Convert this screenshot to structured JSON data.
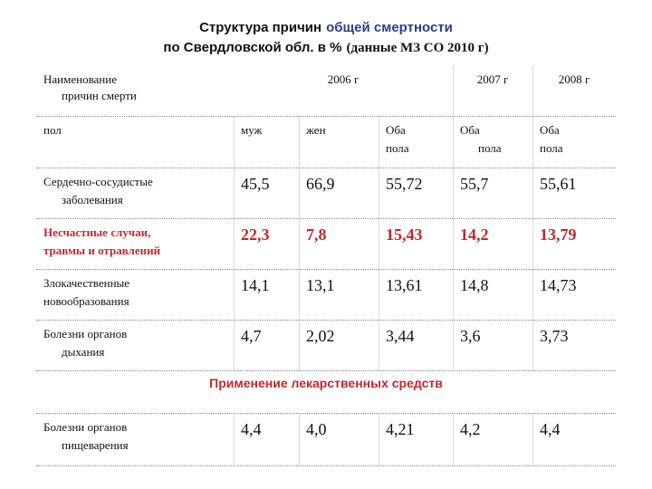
{
  "title": {
    "line1": [
      "Структура причин",
      "общей смертности"
    ],
    "line2": [
      "по Свердловской обл. в %",
      "(данные МЗ СО 2010 г)"
    ]
  },
  "table": {
    "header": {
      "name": [
        "Наименование",
        "причин смерти"
      ],
      "years": [
        "2006 г",
        "2007 г",
        "2008 г"
      ]
    },
    "sex_row": [
      "пол",
      "муж",
      "жен",
      [
        "Оба",
        "пола"
      ],
      [
        "Оба",
        "пола"
      ],
      [
        "Оба",
        "пола"
      ]
    ],
    "rows": [
      {
        "name": [
          "Сердечно-сосудистые",
          "заболевания"
        ],
        "values": [
          "45,5",
          "66,9",
          "55,72",
          "55,7",
          "55,61"
        ]
      },
      {
        "name": [
          "Несчастные случаи,",
          "травмы и отравлений"
        ],
        "values": [
          "22,3",
          "7,8",
          "15,43",
          "14,2",
          "13,79"
        ],
        "color": "#c0282d"
      },
      {
        "name": [
          "Злокачественные",
          "новообразования"
        ],
        "values": [
          "14,1",
          "13,1",
          "13,61",
          "14,8",
          "14,73"
        ]
      },
      {
        "name": [
          "Болезни органов",
          "дыхания"
        ],
        "values": [
          "4,7",
          "2,02",
          "3,44",
          "3,6",
          "3,73"
        ]
      }
    ],
    "section": "Применение лекарственных средств",
    "rows_after": [
      {
        "name": [
          "Болезни органов",
          "пищеварения"
        ],
        "values": [
          "4,4",
          "4,0",
          "4,21",
          "4,2",
          "4,4"
        ]
      }
    ]
  }
}
